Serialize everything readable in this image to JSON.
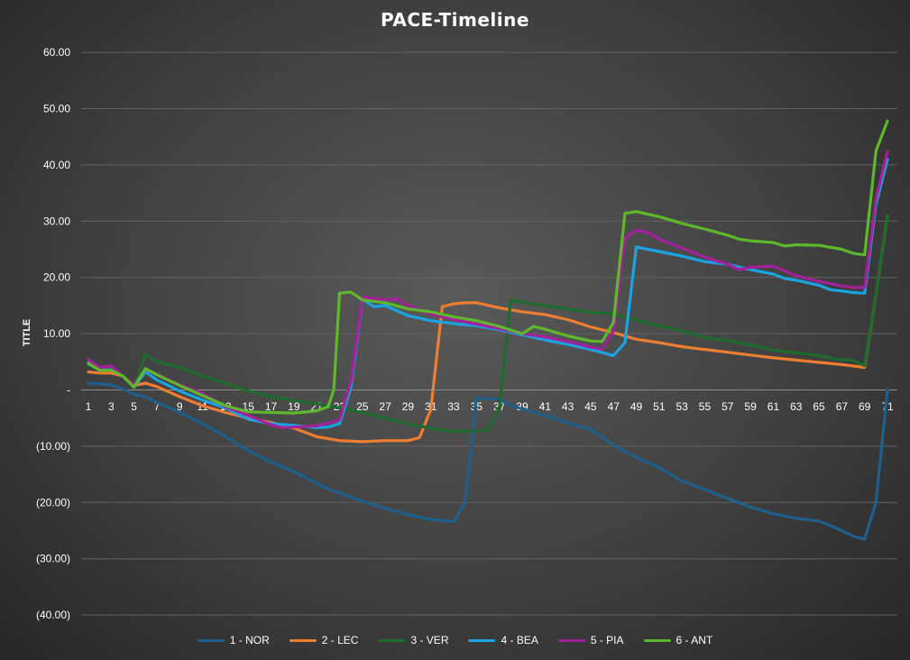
{
  "chart_data": {
    "type": "line",
    "title": "PACE-Timeline",
    "ylabel": "TITLE",
    "ylim": [
      -40,
      60
    ],
    "yticks": [
      60,
      50,
      40,
      30,
      20,
      10,
      0,
      -10,
      -20,
      -30,
      -40
    ],
    "ytick_labels": [
      "60.00",
      "50.00",
      "40.00",
      "30.00",
      "20.00",
      "10.00",
      "-",
      "(10.00)",
      "(20.00)",
      "(30.00)",
      "(40.00)"
    ],
    "xlim": [
      1,
      71
    ],
    "xticks": [
      1,
      3,
      5,
      7,
      9,
      11,
      13,
      15,
      17,
      19,
      21,
      23,
      25,
      27,
      29,
      31,
      33,
      35,
      37,
      39,
      41,
      43,
      45,
      47,
      49,
      51,
      53,
      55,
      57,
      59,
      61,
      63,
      65,
      67,
      69,
      71
    ],
    "grid": true,
    "legend_position": "bottom",
    "series": [
      {
        "name": "1 - NOR",
        "color": "#1f5f8b",
        "points": [
          [
            1,
            1.2
          ],
          [
            2,
            1.1
          ],
          [
            3,
            0.9
          ],
          [
            4,
            0.2
          ],
          [
            5,
            -0.8
          ],
          [
            6,
            -1.2
          ],
          [
            7,
            -2.2
          ],
          [
            9,
            -4
          ],
          [
            11,
            -6
          ],
          [
            13,
            -8.3
          ],
          [
            15,
            -10.8
          ],
          [
            17,
            -12.8
          ],
          [
            19,
            -14.5
          ],
          [
            21,
            -16.6
          ],
          [
            22,
            -17.6
          ],
          [
            25,
            -19.8
          ],
          [
            29,
            -22.2
          ],
          [
            31,
            -23
          ],
          [
            33,
            -23.4
          ],
          [
            34,
            -20
          ],
          [
            35,
            -1.5
          ],
          [
            36,
            -1.5
          ],
          [
            37,
            -1.7
          ],
          [
            38,
            -2.8
          ],
          [
            41,
            -4.5
          ],
          [
            43,
            -5.8
          ],
          [
            45,
            -7
          ],
          [
            47,
            -9.8
          ],
          [
            49,
            -12
          ],
          [
            51,
            -13.8
          ],
          [
            53,
            -16.2
          ],
          [
            55,
            -17.7
          ],
          [
            57,
            -19.3
          ],
          [
            59,
            -20.8
          ],
          [
            61,
            -22
          ],
          [
            63,
            -22.8
          ],
          [
            65,
            -23.3
          ],
          [
            67,
            -25
          ],
          [
            68,
            -26
          ],
          [
            69,
            -26.5
          ],
          [
            70,
            -20
          ],
          [
            71,
            0
          ]
        ]
      },
      {
        "name": "2 - LEC",
        "color": "#ed7d31",
        "points": [
          [
            1,
            3.2
          ],
          [
            2,
            3
          ],
          [
            3,
            3
          ],
          [
            4,
            2.5
          ],
          [
            5,
            0.8
          ],
          [
            6,
            1.2
          ],
          [
            7,
            0.6
          ],
          [
            9,
            -1.2
          ],
          [
            11,
            -2.8
          ],
          [
            13,
            -4
          ],
          [
            15,
            -5
          ],
          [
            17,
            -5.8
          ],
          [
            19,
            -6.8
          ],
          [
            21,
            -8.3
          ],
          [
            23,
            -9
          ],
          [
            25,
            -9.2
          ],
          [
            27,
            -9
          ],
          [
            29,
            -9
          ],
          [
            30,
            -8.5
          ],
          [
            31,
            -3.5
          ],
          [
            32,
            14.8
          ],
          [
            33,
            15.3
          ],
          [
            34,
            15.5
          ],
          [
            35,
            15.5
          ],
          [
            37,
            14.6
          ],
          [
            39,
            13.9
          ],
          [
            41,
            13.4
          ],
          [
            43,
            12.5
          ],
          [
            45,
            11.2
          ],
          [
            47,
            10.2
          ],
          [
            49,
            9
          ],
          [
            51,
            8.4
          ],
          [
            53,
            7.7
          ],
          [
            55,
            7.2
          ],
          [
            57,
            6.7
          ],
          [
            59,
            6.2
          ],
          [
            61,
            5.7
          ],
          [
            63,
            5.3
          ],
          [
            65,
            4.9
          ],
          [
            67,
            4.5
          ],
          [
            69,
            4
          ],
          [
            70,
            17
          ],
          [
            71,
            31
          ]
        ]
      },
      {
        "name": "3 - VER",
        "color": "#1e6b2e",
        "points": [
          [
            1,
            4.5
          ],
          [
            2,
            3.5
          ],
          [
            3,
            3.6
          ],
          [
            4,
            2.5
          ],
          [
            5,
            0.4
          ],
          [
            6,
            6.3
          ],
          [
            7,
            5
          ],
          [
            9,
            4
          ],
          [
            11,
            2.5
          ],
          [
            13,
            1.2
          ],
          [
            15,
            -0.2
          ],
          [
            17,
            -1.2
          ],
          [
            19,
            -1.9
          ],
          [
            21,
            -2.5
          ],
          [
            23,
            -3.2
          ],
          [
            25,
            -4
          ],
          [
            27,
            -5
          ],
          [
            29,
            -6
          ],
          [
            31,
            -6.8
          ],
          [
            33,
            -7.4
          ],
          [
            35,
            -7.3
          ],
          [
            36,
            -7.1
          ],
          [
            37,
            -3
          ],
          [
            38,
            16
          ],
          [
            39,
            15.6
          ],
          [
            41,
            15
          ],
          [
            43,
            14.4
          ],
          [
            45,
            13.8
          ],
          [
            47,
            13.5
          ],
          [
            49,
            12.4
          ],
          [
            51,
            11.4
          ],
          [
            53,
            10.5
          ],
          [
            55,
            9.3
          ],
          [
            57,
            8.8
          ],
          [
            59,
            8
          ],
          [
            61,
            7.1
          ],
          [
            63,
            6.6
          ],
          [
            65,
            6.1
          ],
          [
            67,
            5.3
          ],
          [
            68,
            5.3
          ],
          [
            69,
            4.3
          ],
          [
            70,
            17
          ],
          [
            71,
            31
          ]
        ]
      },
      {
        "name": "4 - BEA",
        "color": "#1aa3e0",
        "points": [
          [
            1,
            4.8
          ],
          [
            2,
            3.5
          ],
          [
            3,
            3.6
          ],
          [
            4,
            2.5
          ],
          [
            5,
            0.5
          ],
          [
            6,
            3.2
          ],
          [
            7,
            1.8
          ],
          [
            9,
            -0.2
          ],
          [
            11,
            -1.8
          ],
          [
            13,
            -3.2
          ],
          [
            15,
            -5.2
          ],
          [
            17,
            -6
          ],
          [
            19,
            -6.3
          ],
          [
            21,
            -6.7
          ],
          [
            22,
            -6.6
          ],
          [
            23,
            -6
          ],
          [
            24,
            0.5
          ],
          [
            25,
            16.2
          ],
          [
            26,
            14.8
          ],
          [
            27,
            15
          ],
          [
            29,
            13.2
          ],
          [
            31,
            12.3
          ],
          [
            33,
            11.8
          ],
          [
            35,
            11.4
          ],
          [
            37,
            10.7
          ],
          [
            39,
            9.8
          ],
          [
            41,
            8.9
          ],
          [
            43,
            8.1
          ],
          [
            45,
            7.2
          ],
          [
            47,
            6.1
          ],
          [
            48,
            8.4
          ],
          [
            49,
            25.4
          ],
          [
            50,
            25
          ],
          [
            51,
            24.6
          ],
          [
            53,
            23.8
          ],
          [
            55,
            22.8
          ],
          [
            57,
            22.3
          ],
          [
            59,
            21.4
          ],
          [
            61,
            20.6
          ],
          [
            62,
            19.8
          ],
          [
            63,
            19.5
          ],
          [
            65,
            18.6
          ],
          [
            66,
            17.8
          ],
          [
            67,
            17.6
          ],
          [
            68,
            17.3
          ],
          [
            69,
            17.2
          ],
          [
            70,
            33
          ],
          [
            71,
            41
          ]
        ]
      },
      {
        "name": "5 - PIA",
        "color": "#a3219b",
        "points": [
          [
            1,
            5.4
          ],
          [
            2,
            4
          ],
          [
            3,
            4.3
          ],
          [
            4,
            2.5
          ],
          [
            5,
            0.8
          ],
          [
            6,
            3.7
          ],
          [
            7,
            2.8
          ],
          [
            9,
            0.9
          ],
          [
            11,
            -0.6
          ],
          [
            13,
            -3
          ],
          [
            15,
            -4.5
          ],
          [
            17,
            -6.2
          ],
          [
            18,
            -6.7
          ],
          [
            19,
            -6.6
          ],
          [
            21,
            -6.4
          ],
          [
            23,
            -5.3
          ],
          [
            24,
            1.5
          ],
          [
            25,
            16.5
          ],
          [
            26,
            16.3
          ],
          [
            27,
            16
          ],
          [
            28,
            16.2
          ],
          [
            29,
            15
          ],
          [
            31,
            13.5
          ],
          [
            33,
            12.5
          ],
          [
            35,
            11.7
          ],
          [
            37,
            10.9
          ],
          [
            39,
            10
          ],
          [
            41,
            9.4
          ],
          [
            43,
            8.6
          ],
          [
            45,
            7.6
          ],
          [
            46,
            7.2
          ],
          [
            47,
            10.5
          ],
          [
            48,
            27
          ],
          [
            49,
            28.4
          ],
          [
            50,
            28
          ],
          [
            51,
            26.8
          ],
          [
            53,
            25.2
          ],
          [
            55,
            23.6
          ],
          [
            57,
            22.3
          ],
          [
            58,
            21.4
          ],
          [
            59,
            21.8
          ],
          [
            61,
            22
          ],
          [
            63,
            20.3
          ],
          [
            65,
            19.3
          ],
          [
            67,
            18.5
          ],
          [
            68,
            18.2
          ],
          [
            69,
            18.2
          ],
          [
            70,
            34
          ],
          [
            71,
            42.3
          ]
        ]
      },
      {
        "name": "6 - ANT",
        "color": "#5eb82b",
        "points": [
          [
            1,
            4.7
          ],
          [
            2,
            3.5
          ],
          [
            3,
            3.5
          ],
          [
            4,
            2.5
          ],
          [
            5,
            0.5
          ],
          [
            6,
            3.8
          ],
          [
            7,
            2.7
          ],
          [
            9,
            0.8
          ],
          [
            11,
            -1
          ],
          [
            13,
            -2.8
          ],
          [
            15,
            -3.9
          ],
          [
            17,
            -4
          ],
          [
            19,
            -4.1
          ],
          [
            21,
            -3.7
          ],
          [
            22,
            -3
          ],
          [
            22.5,
            0
          ],
          [
            23,
            17.2
          ],
          [
            24,
            17.4
          ],
          [
            25,
            16
          ],
          [
            27,
            15.5
          ],
          [
            29,
            14.4
          ],
          [
            31,
            13.9
          ],
          [
            33,
            13
          ],
          [
            35,
            12.3
          ],
          [
            37,
            11.3
          ],
          [
            39,
            10
          ],
          [
            40,
            11.3
          ],
          [
            41,
            10.8
          ],
          [
            43,
            9.6
          ],
          [
            45,
            8.7
          ],
          [
            46,
            8.6
          ],
          [
            47,
            12
          ],
          [
            48,
            31.4
          ],
          [
            49,
            31.7
          ],
          [
            51,
            30.8
          ],
          [
            53,
            29.6
          ],
          [
            55,
            28.6
          ],
          [
            57,
            27.5
          ],
          [
            58,
            26.8
          ],
          [
            59,
            26.5
          ],
          [
            61,
            26.2
          ],
          [
            62,
            25.6
          ],
          [
            63,
            25.8
          ],
          [
            65,
            25.7
          ],
          [
            67,
            25
          ],
          [
            68,
            24.3
          ],
          [
            69,
            24
          ],
          [
            70,
            42.5
          ],
          [
            71,
            47.8
          ]
        ]
      }
    ]
  }
}
